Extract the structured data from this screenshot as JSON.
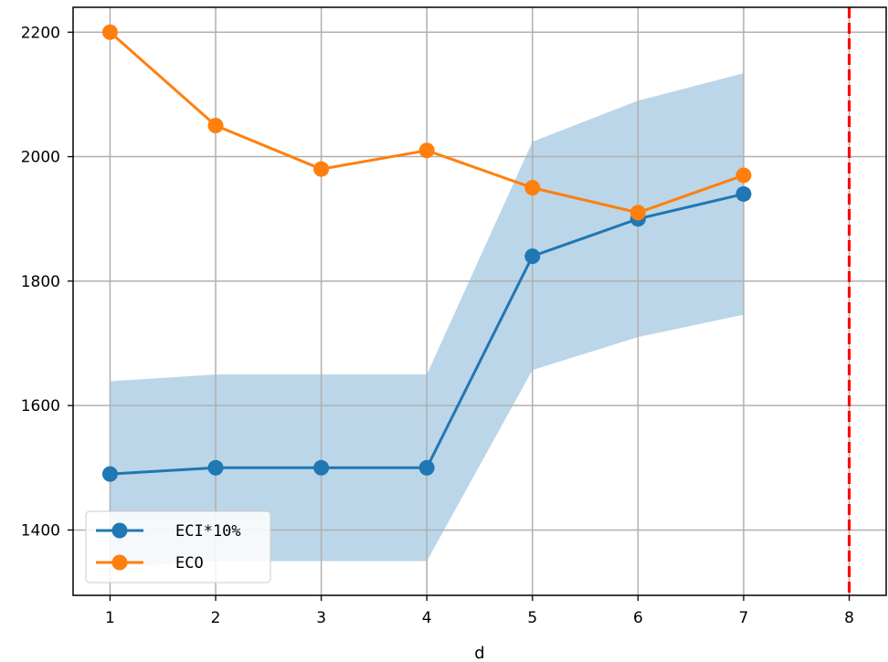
{
  "chart_data": {
    "type": "line",
    "title": "",
    "xlabel": "d",
    "ylabel": "",
    "x": [
      1,
      2,
      3,
      4,
      5,
      6,
      7
    ],
    "xlim": [
      0.65,
      8.35
    ],
    "ylim": [
      1295,
      2240
    ],
    "xticks": [
      "1",
      "2",
      "3",
      "4",
      "5",
      "6",
      "7",
      "8"
    ],
    "yticks": [
      "1400",
      "1600",
      "1800",
      "2000",
      "2200"
    ],
    "grid": true,
    "legend_position": "lower-left",
    "series": [
      {
        "name": "ECI*10%",
        "color": "#1f77b4",
        "values": [
          1490,
          1500,
          1500,
          1500,
          1840,
          1900,
          1940
        ],
        "band_lower": [
          1340,
          1350,
          1350,
          1350,
          1657,
          1710,
          1746
        ],
        "band_upper": [
          1639,
          1650,
          1650,
          1650,
          2024,
          2090,
          2134
        ],
        "band_color": "#1f77b4"
      },
      {
        "name": "ECO",
        "color": "#ff7f0e",
        "values": [
          2200,
          2050,
          1980,
          2010,
          1950,
          1910,
          1970
        ]
      }
    ],
    "reference_line": {
      "x": 8,
      "color": "#ff0000",
      "style": "dashed"
    }
  }
}
